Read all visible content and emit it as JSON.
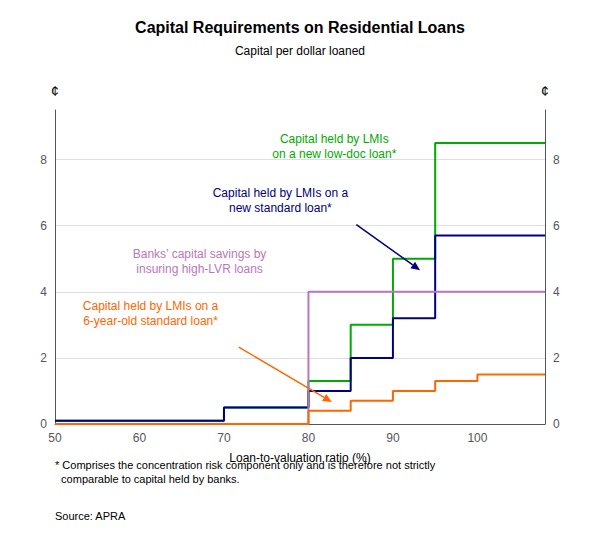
{
  "chart_data": {
    "type": "line",
    "title": "Capital Requirements on Residential Loans",
    "subtitle": "Capital per dollar loaned",
    "xlabel": "Loan-to-valuation ratio (%)",
    "ylabel": "¢",
    "y2label": "¢",
    "xlim": [
      50,
      108
    ],
    "xticks": [
      50,
      60,
      70,
      80,
      90,
      100
    ],
    "ylim": [
      0,
      9.5
    ],
    "yticks": [
      0,
      2,
      4,
      6,
      8
    ],
    "y2lim": [
      0,
      9.5
    ],
    "y2ticks": [
      0,
      2,
      4,
      6,
      8
    ],
    "grid": true,
    "series": [
      {
        "color": "#00AA00",
        "x": [
          50,
          70,
          70,
          80,
          80,
          85,
          85,
          90,
          90,
          95,
          95,
          108
        ],
        "values": [
          0.1,
          0.1,
          0.5,
          0.5,
          1.3,
          1.3,
          3.0,
          3.0,
          5.0,
          5.0,
          8.5,
          8.5
        ]
      },
      {
        "color": "#000080",
        "x": [
          50,
          70,
          70,
          80,
          80,
          85,
          85,
          90,
          90,
          95,
          95,
          108
        ],
        "values": [
          0.1,
          0.1,
          0.5,
          0.5,
          1.0,
          1.0,
          2.0,
          2.0,
          3.2,
          3.2,
          5.7,
          5.7
        ]
      },
      {
        "color": "#BB77BB",
        "x": [
          50,
          80,
          80,
          108
        ],
        "values": [
          0.0,
          0.0,
          4.0,
          4.0
        ]
      },
      {
        "color": "#FF6600",
        "x": [
          50,
          80,
          80,
          85,
          85,
          90,
          90,
          95,
          95,
          100,
          100,
          108
        ],
        "values": [
          0.0,
          0.0,
          0.4,
          0.4,
          0.7,
          0.7,
          1.0,
          1.0,
          1.3,
          1.3,
          1.5,
          1.5
        ]
      }
    ],
    "annotations": [
      {
        "text": "Capital held by LMIs\non a new low-doc loan*",
        "color": "#00AA00"
      },
      {
        "text": "Capital held by LMIs on a\nnew standard loan*",
        "color": "#000080"
      },
      {
        "text": "Banks’ capital savings by\ninsuring high-LVR loans",
        "color": "#BB77BB"
      },
      {
        "text": "Capital held by LMIs on a\n6-year-old standard loan*",
        "color": "#FF6600"
      }
    ],
    "footnote": "* Comprises the concentration risk component only and is therefore not strictly\n  comparable to capital held by banks.",
    "source": "Source: APRA"
  }
}
